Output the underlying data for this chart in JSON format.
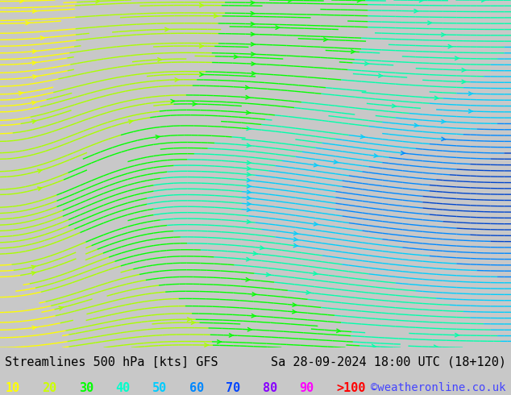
{
  "title_left": "Streamlines 500 hPa [kts] GFS",
  "title_right": "Sa 28-09-2024 18:00 UTC (18+120)",
  "credit": "©weatheronline.co.uk",
  "legend_values": [
    "10",
    "20",
    "30",
    "40",
    "50",
    "60",
    "70",
    "80",
    "90",
    ">100"
  ],
  "legend_colors": [
    "#ffff00",
    "#ccff00",
    "#00ff00",
    "#00ffcc",
    "#00ccff",
    "#0088ff",
    "#0044ff",
    "#8800ff",
    "#ff00ff",
    "#ff0000"
  ],
  "bg_color": "#d0d0d0",
  "map_bg_color": "#c8c8c8",
  "land_color": "#90ee90",
  "title_fontsize": 11,
  "credit_color": "#4444ff",
  "streamline_colors_slow": "#00cc00",
  "streamline_colors_mid": "#00cccc",
  "streamline_colors_fast": "#0088ff",
  "streamline_colors_vfast": "#ffff00"
}
